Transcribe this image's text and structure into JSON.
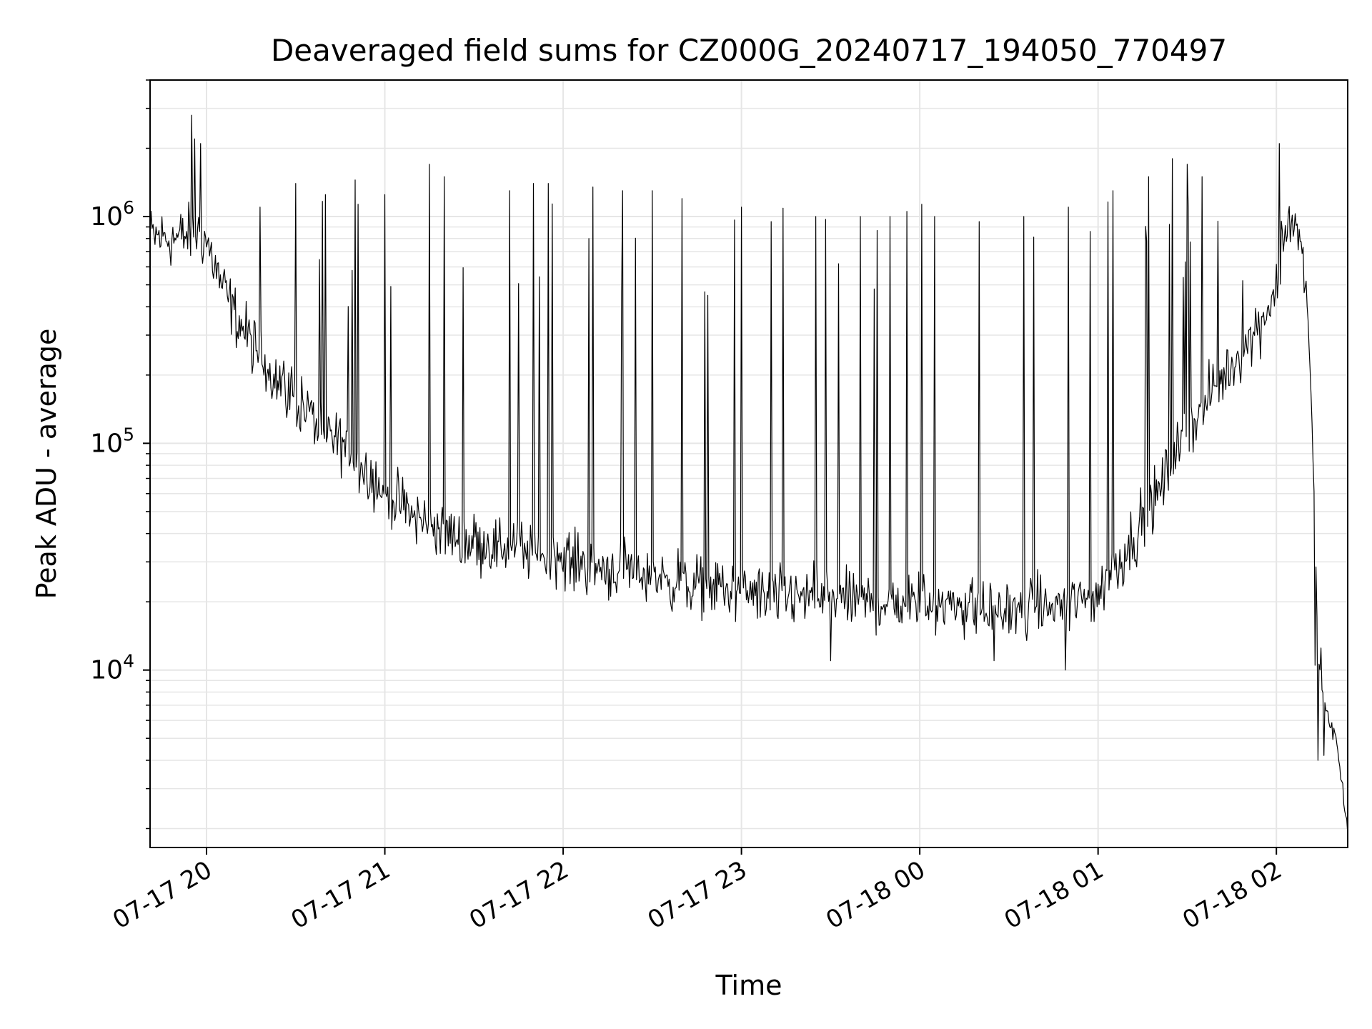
{
  "chart_data": {
    "type": "line",
    "title": "Deaveraged field sums for CZ000G_20240717_194050_770497",
    "xlabel": "Time",
    "ylabel": "Peak ADU - average",
    "y_scale": "log",
    "ylim": [
      1650,
      4000000
    ],
    "xlim": [
      "2024-07-17 19:41",
      "2024-07-18 02:24"
    ],
    "x_ticks": [
      "07-17 20",
      "07-17 21",
      "07-17 22",
      "07-17 23",
      "07-18 00",
      "07-18 01",
      "07-18 02"
    ],
    "x_tick_times": [
      "2024-07-17 20:00",
      "2024-07-17 21:00",
      "2024-07-17 22:00",
      "2024-07-17 23:00",
      "2024-07-18 00:00",
      "2024-07-18 01:00",
      "2024-07-18 02:00"
    ],
    "y_ticks": [
      {
        "base": "10",
        "exp": "4",
        "value": 10000
      },
      {
        "base": "10",
        "exp": "5",
        "value": 100000
      },
      {
        "base": "10",
        "exp": "6",
        "value": 1000000
      }
    ],
    "grid": "major and minor",
    "grid_color": "#e6e6e6",
    "line_color": "#000000",
    "series": [
      {
        "baseline": {
          "x": [
            "2024-07-17 19:41",
            "2024-07-17 19:50",
            "2024-07-17 19:57",
            "2024-07-17 20:00",
            "2024-07-17 20:05",
            "2024-07-17 20:10",
            "2024-07-17 20:20",
            "2024-07-17 20:30",
            "2024-07-17 20:40",
            "2024-07-17 20:50",
            "2024-07-17 21:00",
            "2024-07-17 21:10",
            "2024-07-17 21:20",
            "2024-07-17 21:30",
            "2024-07-17 21:45",
            "2024-07-17 22:00",
            "2024-07-17 22:15",
            "2024-07-17 22:30",
            "2024-07-17 22:45",
            "2024-07-17 23:00",
            "2024-07-17 23:15",
            "2024-07-17 23:30",
            "2024-07-17 23:45",
            "2024-07-18 00:00",
            "2024-07-18 00:15",
            "2024-07-18 00:30",
            "2024-07-18 00:45",
            "2024-07-18 00:55",
            "2024-07-18 01:00",
            "2024-07-18 01:05",
            "2024-07-18 01:10",
            "2024-07-18 01:20",
            "2024-07-18 01:30",
            "2024-07-18 01:40",
            "2024-07-18 01:50",
            "2024-07-18 01:55",
            "2024-07-18 02:00",
            "2024-07-18 02:02",
            "2024-07-18 02:05",
            "2024-07-18 02:07",
            "2024-07-18 02:09",
            "2024-07-18 02:11",
            "2024-07-18 02:12",
            "2024-07-18 02:13",
            "2024-07-18 02:14",
            "2024-07-18 02:16",
            "2024-07-18 02:20",
            "2024-07-18 02:24"
          ],
          "y": [
            820000,
            800000,
            850000,
            780000,
            500000,
            360000,
            220000,
            160000,
            110000,
            88000,
            60000,
            47000,
            41000,
            37000,
            34000,
            31000,
            28000,
            26000,
            24000,
            22000,
            21000,
            20500,
            20000,
            20000,
            19000,
            18500,
            19000,
            20000,
            22000,
            27000,
            35000,
            60000,
            110000,
            180000,
            270000,
            350000,
            480000,
            800000,
            1000000,
            900000,
            600000,
            300000,
            120000,
            40000,
            12000,
            7000,
            5000,
            2000
          ]
        },
        "spikes": [
          {
            "x": "2024-07-17 19:55",
            "y": 2800000
          },
          {
            "x": "2024-07-17 19:56",
            "y": 2200000
          },
          {
            "x": "2024-07-17 19:58",
            "y": 2100000
          },
          {
            "x": "2024-07-17 20:18",
            "y": 1100000
          },
          {
            "x": "2024-07-17 20:30",
            "y": 1400000
          },
          {
            "x": "2024-07-17 20:40",
            "y": 1250000
          },
          {
            "x": "2024-07-17 20:50",
            "y": 1450000
          },
          {
            "x": "2024-07-17 21:00",
            "y": 1250000
          },
          {
            "x": "2024-07-17 21:15",
            "y": 1700000
          },
          {
            "x": "2024-07-17 21:20",
            "y": 1500000
          },
          {
            "x": "2024-07-17 21:42",
            "y": 1300000
          },
          {
            "x": "2024-07-17 21:50",
            "y": 1400000
          },
          {
            "x": "2024-07-17 21:55",
            "y": 1400000
          },
          {
            "x": "2024-07-17 22:10",
            "y": 1350000
          },
          {
            "x": "2024-07-17 22:20",
            "y": 1300000
          },
          {
            "x": "2024-07-17 22:30",
            "y": 1300000
          },
          {
            "x": "2024-07-17 22:40",
            "y": 1200000
          },
          {
            "x": "2024-07-17 23:00",
            "y": 1100000
          },
          {
            "x": "2024-07-17 23:10",
            "y": 950000
          },
          {
            "x": "2024-07-17 23:25",
            "y": 1000000
          },
          {
            "x": "2024-07-17 23:40",
            "y": 1000000
          },
          {
            "x": "2024-07-17 23:50",
            "y": 1000000
          },
          {
            "x": "2024-07-18 00:05",
            "y": 1000000
          },
          {
            "x": "2024-07-18 00:20",
            "y": 950000
          },
          {
            "x": "2024-07-18 00:35",
            "y": 1000000
          },
          {
            "x": "2024-07-18 00:50",
            "y": 1100000
          },
          {
            "x": "2024-07-18 01:05",
            "y": 1300000
          },
          {
            "x": "2024-07-18 01:17",
            "y": 1500000
          },
          {
            "x": "2024-07-18 01:25",
            "y": 1800000
          },
          {
            "x": "2024-07-18 01:30",
            "y": 1700000
          },
          {
            "x": "2024-07-18 01:35",
            "y": 1500000
          },
          {
            "x": "2024-07-18 02:01",
            "y": 2100000
          },
          {
            "x": "2024-07-18 02:13",
            "y": 10500
          },
          {
            "x": "2024-07-18 02:15",
            "y": 12500
          }
        ],
        "dips": [
          {
            "x": "2024-07-17 23:30",
            "y": 11000
          },
          {
            "x": "2024-07-18 00:25",
            "y": 11000
          },
          {
            "x": "2024-07-18 00:49",
            "y": 10000
          },
          {
            "x": "2024-07-18 02:14",
            "y": 4000
          },
          {
            "x": "2024-07-18 02:16",
            "y": 4200
          }
        ]
      }
    ]
  }
}
